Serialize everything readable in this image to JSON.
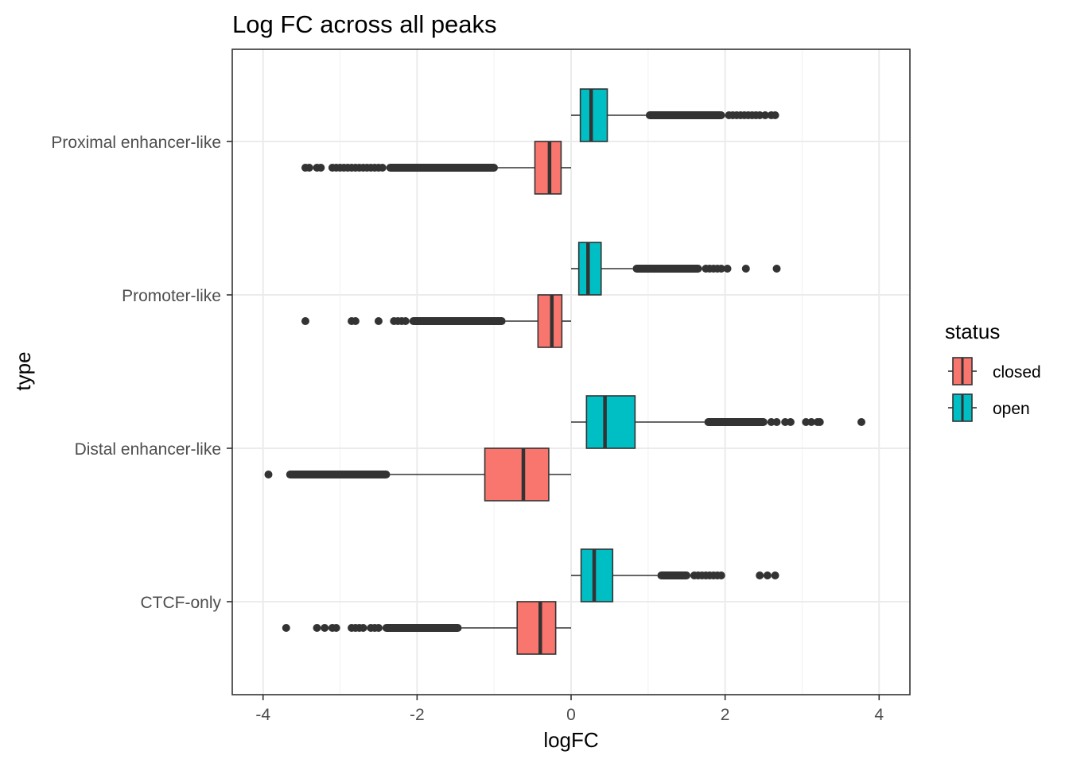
{
  "chart_data": {
    "type": "boxplot",
    "title": "Log FC across all peaks",
    "xlabel": "logFC",
    "ylabel": "type",
    "orientation": "horizontal",
    "xlim": [
      -4.4,
      4.4
    ],
    "x_ticks": [
      -4,
      -2,
      0,
      2,
      4
    ],
    "x_tick_labels": [
      "-4",
      "-2",
      "0",
      "2",
      "4"
    ],
    "grid": true,
    "legend": {
      "title": "status",
      "position": "right",
      "entries": [
        {
          "label": "closed",
          "color": "#F8766D"
        },
        {
          "label": "open",
          "color": "#00BFC4"
        }
      ]
    },
    "categories": [
      "Proximal enhancer-like",
      "Promoter-like",
      "Distal enhancer-like",
      "CTCF-only"
    ],
    "series": [
      {
        "name": "closed",
        "color": "#F8766D",
        "boxes": [
          {
            "category": "Proximal enhancer-like",
            "whisker_low": -0.95,
            "q1": -0.47,
            "median": -0.28,
            "q3": -0.13,
            "whisker_high": 0.0,
            "outliers_dense": [
              -2.4,
              -0.95
            ],
            "outliers": [
              -3.45,
              -3.4,
              -3.3,
              -3.25,
              -3.1,
              -3.05,
              -3.0,
              -2.95,
              -2.9,
              -2.85,
              -2.8,
              -2.75,
              -2.7,
              -2.65,
              -2.6,
              -2.55,
              -2.5,
              -2.45
            ]
          },
          {
            "category": "Promoter-like",
            "whisker_low": -0.85,
            "q1": -0.43,
            "median": -0.25,
            "q3": -0.12,
            "whisker_high": 0.0,
            "outliers_dense": [
              -2.1,
              -0.85
            ],
            "outliers": [
              -3.45,
              -2.85,
              -2.8,
              -2.5,
              -2.3,
              -2.25,
              -2.2,
              -2.15
            ]
          },
          {
            "category": "Distal enhancer-like",
            "whisker_low": -2.35,
            "q1": -1.12,
            "median": -0.62,
            "q3": -0.29,
            "whisker_high": 0.0,
            "outliers_dense": [
              -3.7,
              -2.35
            ],
            "outliers": [
              -3.93
            ]
          },
          {
            "category": "CTCF-only",
            "whisker_low": -1.42,
            "q1": -0.7,
            "median": -0.4,
            "q3": -0.2,
            "whisker_high": 0.0,
            "outliers_dense": [
              -2.45,
              -1.42
            ],
            "outliers": [
              -3.7,
              -3.3,
              -3.2,
              -3.1,
              -3.05,
              -2.85,
              -2.8,
              -2.75,
              -2.7,
              -2.6,
              -2.55,
              -2.5
            ]
          }
        ]
      },
      {
        "name": "open",
        "color": "#00BFC4",
        "boxes": [
          {
            "category": "Proximal enhancer-like",
            "whisker_low": 0.0,
            "q1": 0.12,
            "median": 0.26,
            "q3": 0.47,
            "whisker_high": 0.97,
            "outliers_dense": [
              0.97,
              2.0
            ],
            "outliers": [
              2.05,
              2.1,
              2.15,
              2.2,
              2.25,
              2.3,
              2.35,
              2.4,
              2.45,
              2.52,
              2.6,
              2.65
            ]
          },
          {
            "category": "Promoter-like",
            "whisker_low": 0.0,
            "q1": 0.1,
            "median": 0.22,
            "q3": 0.39,
            "whisker_high": 0.8,
            "outliers_dense": [
              0.8,
              1.7
            ],
            "outliers": [
              1.75,
              1.8,
              1.85,
              1.9,
              1.95,
              2.03,
              2.27,
              2.67
            ]
          },
          {
            "category": "Distal enhancer-like",
            "whisker_low": 0.0,
            "q1": 0.2,
            "median": 0.44,
            "q3": 0.83,
            "whisker_high": 1.73,
            "outliers_dense": [
              1.73,
              2.55
            ],
            "outliers": [
              2.6,
              2.67,
              2.78,
              2.85,
              3.05,
              3.12,
              3.2,
              3.23,
              3.77
            ]
          },
          {
            "category": "CTCF-only",
            "whisker_low": 0.0,
            "q1": 0.13,
            "median": 0.3,
            "q3": 0.54,
            "whisker_high": 1.12,
            "outliers_dense": [
              1.12,
              1.55
            ],
            "outliers": [
              1.6,
              1.65,
              1.7,
              1.75,
              1.8,
              1.85,
              1.9,
              1.95,
              2.45,
              2.55,
              2.65
            ]
          }
        ]
      }
    ]
  }
}
